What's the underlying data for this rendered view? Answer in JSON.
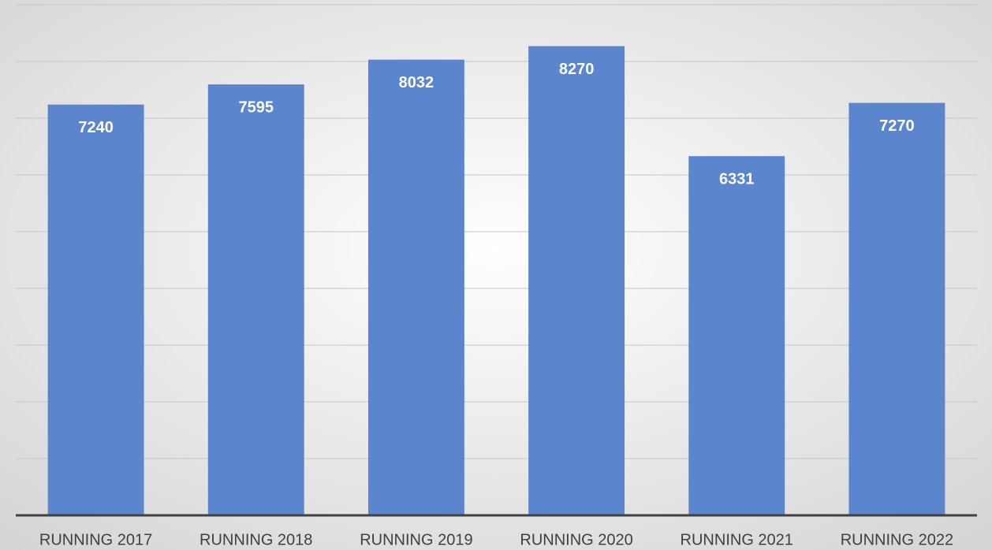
{
  "chart_data": {
    "type": "bar",
    "categories": [
      "RUNNING 2017",
      "RUNNING 2018",
      "RUNNING 2019",
      "RUNNING 2020",
      "RUNNING 2021",
      "RUNNING 2022"
    ],
    "values": [
      7240,
      7595,
      8032,
      8270,
      6331,
      7270
    ],
    "color": "#5b85cd",
    "ylim": [
      0,
      9000
    ],
    "yticks": [
      0,
      1000,
      2000,
      3000,
      4000,
      5000,
      6000,
      7000,
      8000,
      9000
    ],
    "grid": true
  }
}
